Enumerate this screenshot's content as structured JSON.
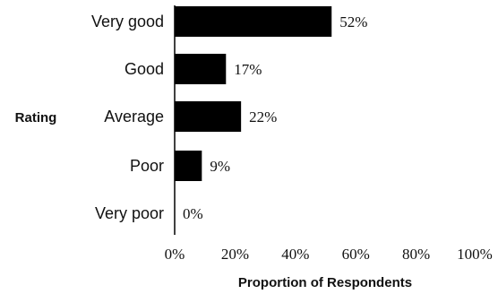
{
  "chart_data": {
    "type": "bar",
    "orientation": "horizontal",
    "categories": [
      "Very good",
      "Good",
      "Average",
      "Poor",
      "Very poor"
    ],
    "values": [
      52,
      17,
      22,
      9,
      0
    ],
    "value_labels": [
      "52%",
      "17%",
      "22%",
      "9%",
      "0%"
    ],
    "xlabel": "Proportion of Respondents",
    "ylabel": "Rating",
    "xlim": [
      0,
      100
    ],
    "x_ticks": [
      "0%",
      "20%",
      "40%",
      "60%",
      "80%",
      "100%"
    ],
    "bar_color": "#000000",
    "grid": false
  }
}
